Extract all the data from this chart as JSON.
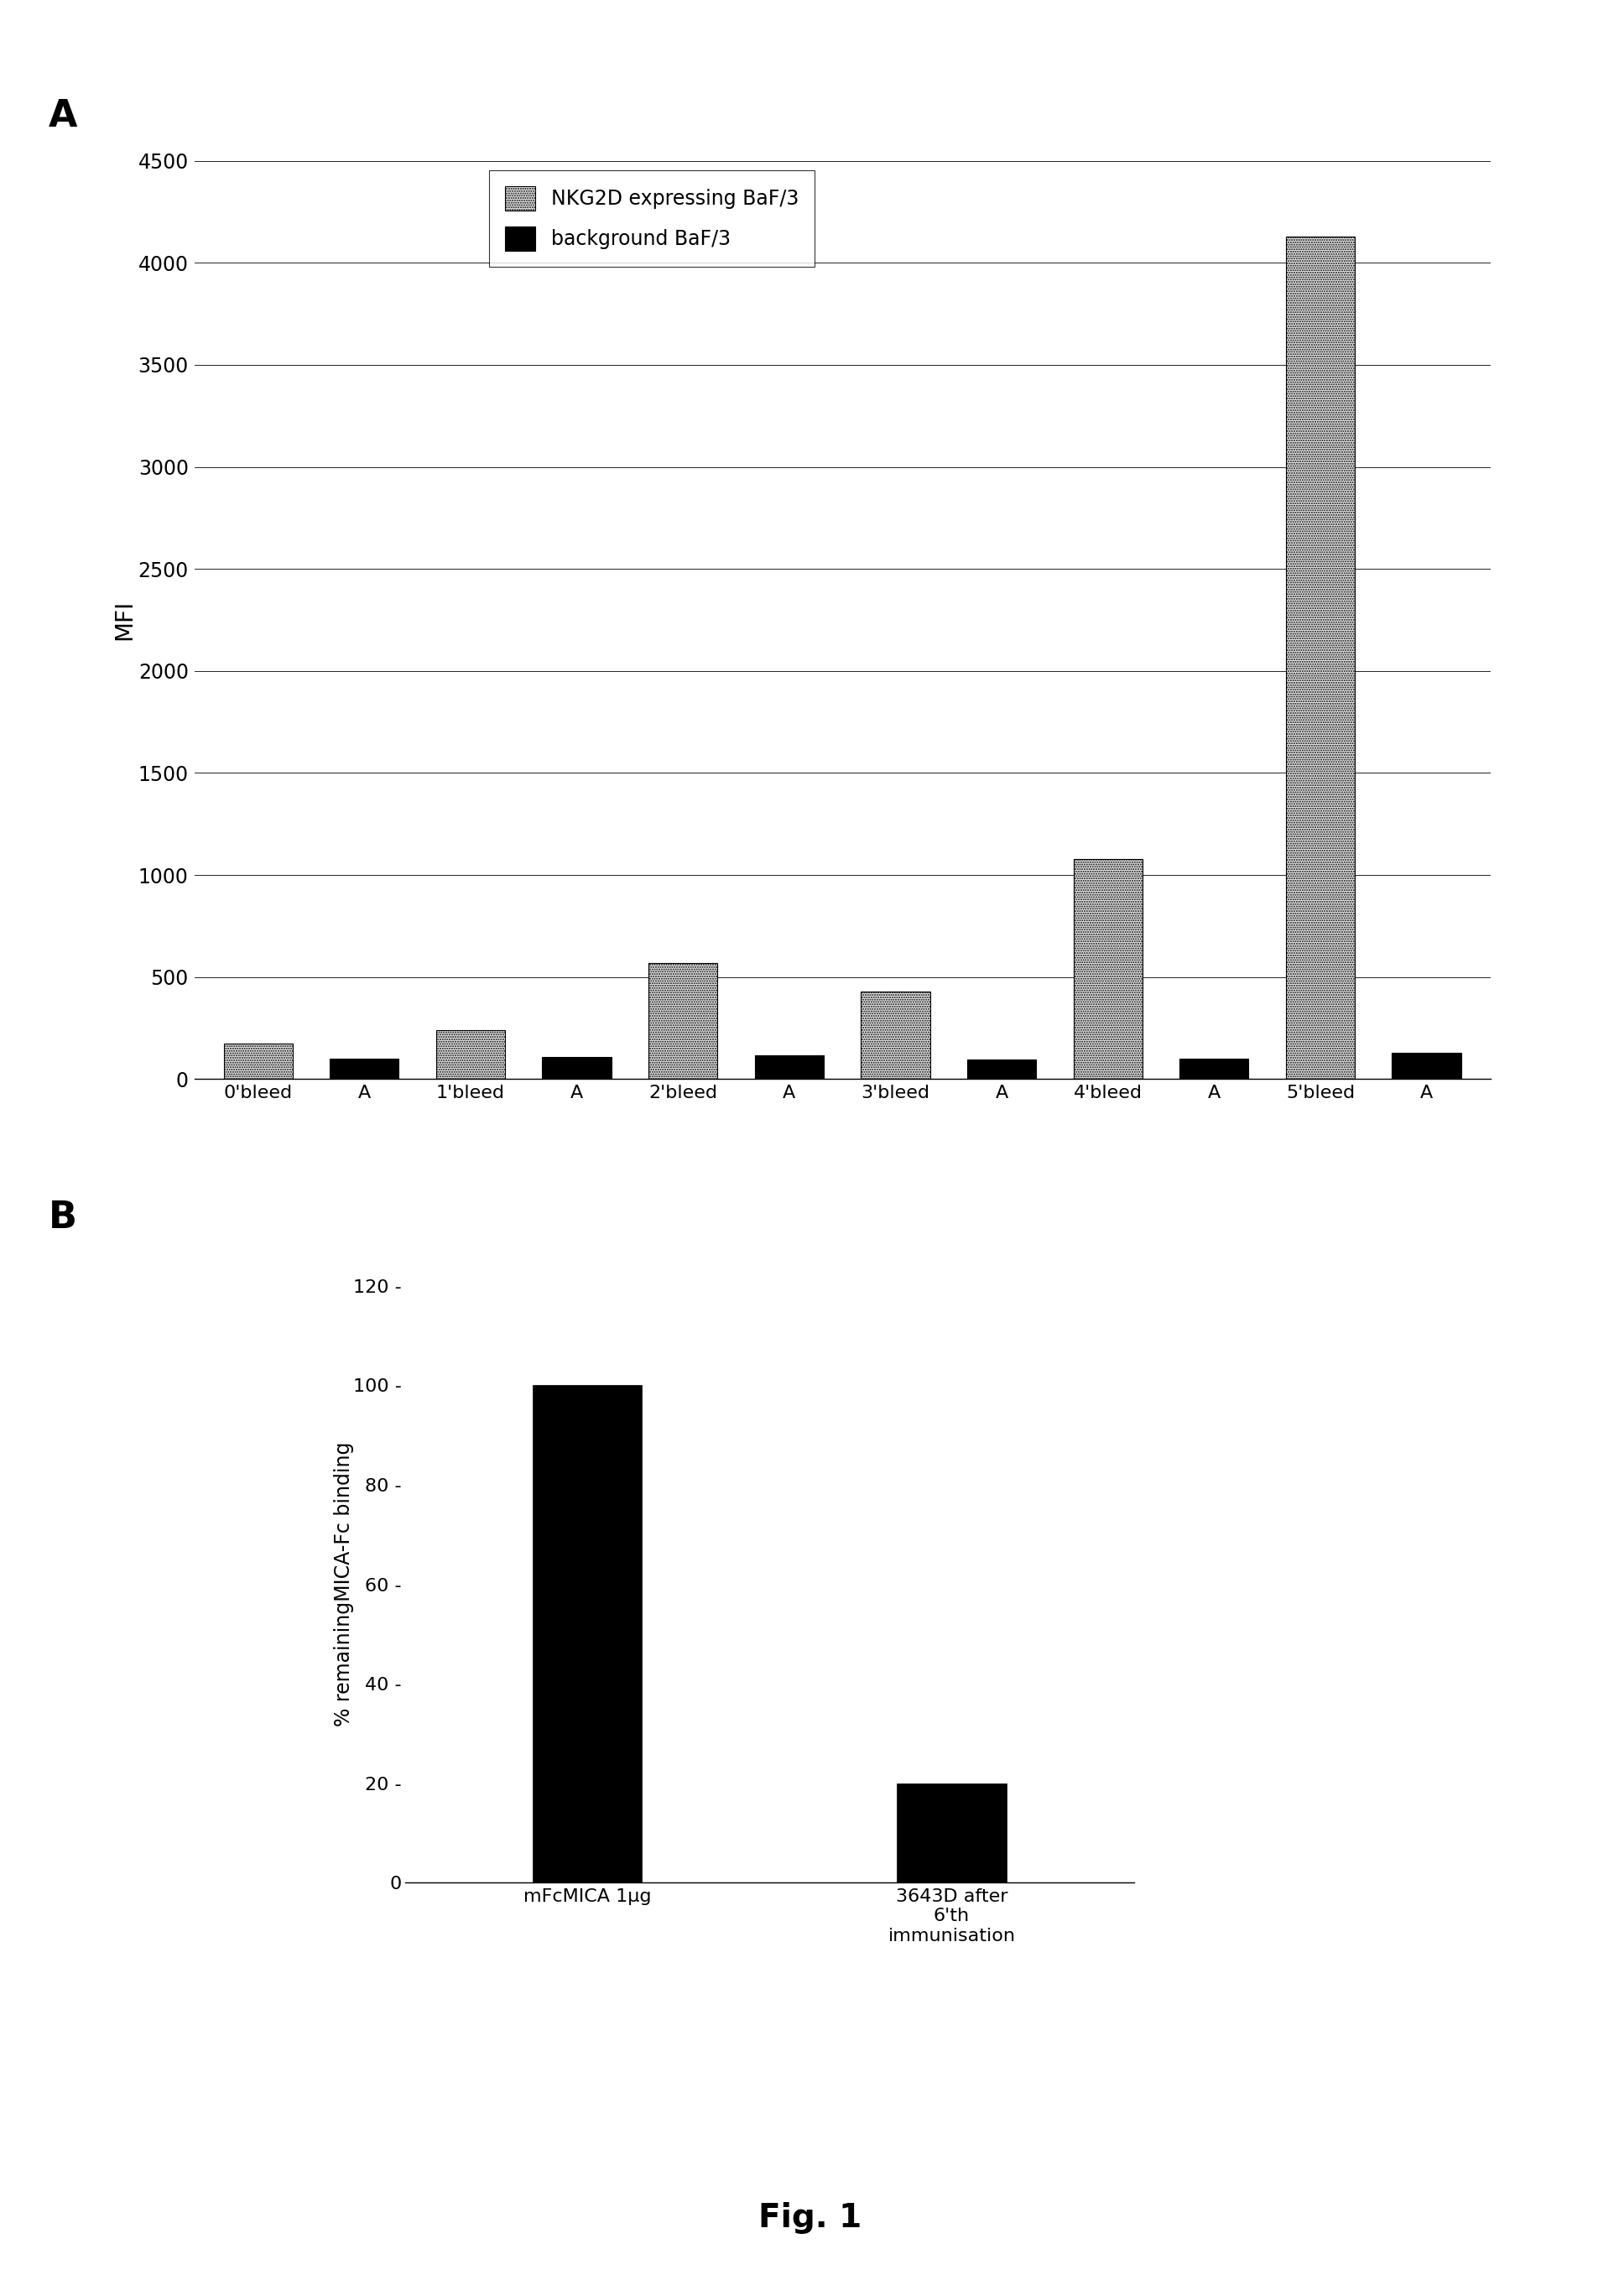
{
  "chart_A": {
    "categories": [
      "0'bleed",
      "A",
      "1'bleed",
      "A",
      "2'bleed",
      "A",
      "3'bleed",
      "A",
      "4'bleed",
      "A",
      "5'bleed",
      "A"
    ],
    "nkg2d_values": [
      175,
      null,
      240,
      null,
      570,
      null,
      430,
      null,
      1080,
      null,
      4130,
      null
    ],
    "background_values": [
      null,
      100,
      null,
      110,
      null,
      115,
      null,
      95,
      null,
      100,
      null,
      130
    ],
    "ylabel": "MFI",
    "ylim": [
      0,
      4500
    ],
    "yticks": [
      0,
      500,
      1000,
      1500,
      2000,
      2500,
      3000,
      3500,
      4000,
      4500
    ],
    "legend_nkg2d": "NKG2D expressing BaF/3",
    "legend_bg": "background BaF/3",
    "panel_label": "A"
  },
  "chart_B": {
    "categories": [
      "mFcMICA 1μg",
      "3643D after\n6'th\nimmunisation"
    ],
    "values": [
      100,
      20
    ],
    "ylabel": "% remainingMICA-Fc binding",
    "ylim": [
      0,
      120
    ],
    "yticks": [
      0,
      20,
      40,
      60,
      80,
      100,
      120
    ],
    "ytick_labels": [
      "0",
      "20 -",
      "40 -",
      "60 -",
      "80 -",
      "100 -",
      "120 -"
    ],
    "panel_label": "B",
    "bar_color": "#000000"
  },
  "fig_label": "Fig. 1",
  "background_color": "#ffffff"
}
